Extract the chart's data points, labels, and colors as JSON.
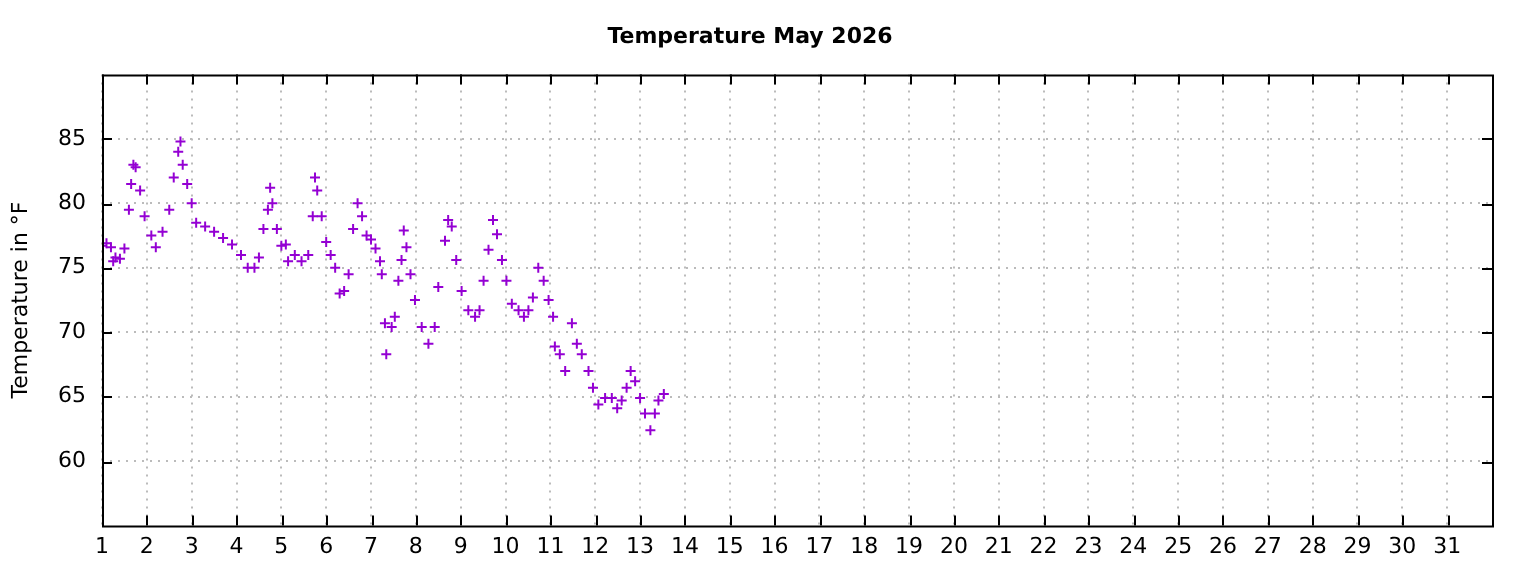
{
  "chart_data": {
    "type": "scatter",
    "title": "Temperature May 2026",
    "ylabel": "Temperature in °F",
    "xlim": [
      1,
      32
    ],
    "xticks": [
      1,
      2,
      3,
      4,
      5,
      6,
      7,
      8,
      9,
      10,
      11,
      12,
      13,
      14,
      15,
      16,
      17,
      18,
      19,
      20,
      21,
      22,
      23,
      24,
      25,
      26,
      27,
      28,
      29,
      30,
      31
    ],
    "ylim": [
      55,
      90
    ],
    "yticks": [
      60,
      65,
      70,
      75,
      80,
      85
    ],
    "grid": true,
    "marker": "cross",
    "legend": false,
    "series": [
      {
        "color": "#9400d3",
        "x": [
          1.0,
          1.1,
          1.2,
          1.25,
          1.3,
          1.4,
          1.5,
          1.6,
          1.65,
          1.7,
          1.75,
          1.85,
          1.95,
          2.1,
          2.2,
          2.35,
          2.5,
          2.6,
          2.7,
          2.75,
          2.8,
          2.9,
          3.0,
          3.1,
          3.3,
          3.5,
          3.7,
          3.9,
          4.1,
          4.25,
          4.4,
          4.5,
          4.6,
          4.7,
          4.75,
          4.8,
          4.9,
          5.0,
          5.1,
          5.15,
          5.3,
          5.45,
          5.6,
          5.7,
          5.75,
          5.8,
          5.9,
          6.0,
          6.1,
          6.2,
          6.3,
          6.4,
          6.5,
          6.6,
          6.7,
          6.8,
          6.9,
          7.0,
          7.1,
          7.2,
          7.24,
          7.31,
          7.34,
          7.46,
          7.53,
          7.61,
          7.68,
          7.73,
          7.79,
          7.88,
          7.98,
          8.13,
          8.28,
          8.42,
          8.5,
          8.65,
          8.72,
          8.8,
          8.9,
          9.02,
          9.17,
          9.32,
          9.42,
          9.51,
          9.62,
          9.72,
          9.81,
          9.92,
          10.02,
          10.14,
          10.29,
          10.41,
          10.51,
          10.61,
          10.73,
          10.85,
          10.96,
          11.06,
          11.1,
          11.21,
          11.33,
          11.48,
          11.59,
          11.7,
          11.85,
          11.95,
          12.07,
          12.22,
          12.37,
          12.49,
          12.59,
          12.7,
          12.79,
          12.89,
          13.0,
          13.11,
          13.23,
          13.33,
          13.41,
          13.53
        ],
        "values": [
          76.7,
          76.9,
          76.6,
          75.5,
          75.8,
          75.7,
          76.5,
          79.5,
          81.5,
          83,
          82.8,
          81,
          79,
          77.5,
          76.6,
          77.8,
          79.5,
          82,
          84,
          84.8,
          83,
          81.5,
          80,
          78.5,
          78.2,
          77.8,
          77.3,
          76.8,
          76,
          75,
          75,
          75.8,
          78,
          79.5,
          81.2,
          80,
          78,
          76.7,
          76.8,
          75.5,
          76,
          75.5,
          76,
          79,
          82,
          81,
          79,
          77,
          76,
          75,
          73,
          73.2,
          74.5,
          78,
          80,
          79,
          77.5,
          77.2,
          76.5,
          75.5,
          74.5,
          70.7,
          68.3,
          70.4,
          71.2,
          74,
          75.6,
          77.9,
          76.6,
          74.5,
          72.5,
          70.4,
          69.1,
          70.4,
          73.5,
          77.1,
          78.7,
          78.2,
          75.6,
          73.2,
          71.7,
          71.2,
          71.7,
          74,
          76.4,
          78.7,
          77.6,
          75.6,
          74,
          72.2,
          71.7,
          71.2,
          71.7,
          72.7,
          75,
          74,
          72.5,
          71.2,
          68.9,
          68.3,
          67,
          70.7,
          69.1,
          68.3,
          67,
          65.7,
          64.4,
          64.9,
          64.9,
          64.1,
          64.7,
          65.7,
          67,
          66.2,
          64.9,
          63.7,
          62.4,
          63.7,
          64.7,
          65.2
        ]
      }
    ]
  }
}
